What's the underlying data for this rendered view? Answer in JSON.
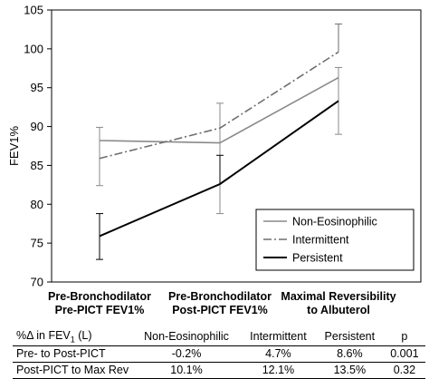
{
  "chart_data": {
    "type": "line",
    "categories": [
      [
        "Pre-Bronchodilator",
        "Pre-PICT FEV1%"
      ],
      [
        "Pre-Bronchodilator",
        "Post-PICT FEV1%"
      ],
      [
        "Maximal Reversibility",
        "to Albuterol"
      ]
    ],
    "ylabel": "FEV1%",
    "ylim": [
      70,
      105
    ],
    "yticks": [
      70,
      75,
      80,
      85,
      90,
      95,
      100,
      105
    ],
    "grid": false,
    "legend_position": "bottom-right",
    "series": [
      {
        "name": "Non-Eosinophilic",
        "values": [
          88.2,
          87.9,
          96.3
        ],
        "error_low": [
          82.4,
          78.8,
          89.0
        ],
        "error_high": [
          89.9,
          93.0,
          97.6
        ],
        "color": "#8a8a8a",
        "style": "solid"
      },
      {
        "name": "Intermittent",
        "values": [
          85.9,
          89.8,
          99.6
        ],
        "error_low": [
          null,
          null,
          null
        ],
        "error_high": [
          null,
          null,
          103.2
        ],
        "color": "#6e6e6e",
        "style": "dashdot"
      },
      {
        "name": "Persistent",
        "values": [
          75.9,
          82.6,
          93.3
        ],
        "error_low": [
          72.9,
          null,
          null
        ],
        "error_high": [
          78.8,
          86.3,
          null
        ],
        "color": "#000000",
        "style": "solid"
      }
    ]
  },
  "table": {
    "header": [
      "%Δ in FEV",
      "1",
      " (L)",
      "Non-Eosinophilic",
      "Intermittent",
      "Persistent",
      "p"
    ],
    "rows": [
      [
        "Pre- to Post-PICT",
        "-0.2%",
        "4.7%",
        "8.6%",
        "0.001"
      ],
      [
        "Post-PICT to Max Rev",
        "10.1%",
        "12.1%",
        "13.5%",
        "0.32"
      ]
    ]
  }
}
